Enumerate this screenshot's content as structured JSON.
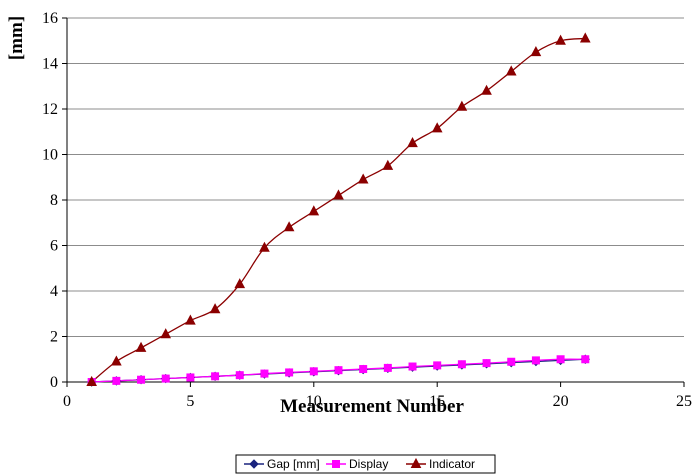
{
  "chart_data": {
    "type": "line",
    "title": "",
    "xlabel": "Measurement Number",
    "ylabel": "[mm]",
    "xlim": [
      0,
      25
    ],
    "ylim": [
      0,
      16
    ],
    "x_ticks": [
      0,
      5,
      10,
      15,
      20,
      25
    ],
    "y_ticks": [
      0,
      2,
      4,
      6,
      8,
      10,
      12,
      14,
      16
    ],
    "grid": "horizontal",
    "legend_position": "bottom",
    "series": [
      {
        "name": "Gap [mm]",
        "color": "#1a237e",
        "marker": "diamond",
        "x": [
          1,
          2,
          3,
          4,
          5,
          6,
          7,
          8,
          9,
          10,
          11,
          12,
          13,
          14,
          15,
          16,
          17,
          18,
          19,
          20,
          21
        ],
        "y": [
          0,
          0.05,
          0.1,
          0.15,
          0.2,
          0.25,
          0.3,
          0.35,
          0.4,
          0.45,
          0.5,
          0.55,
          0.6,
          0.65,
          0.7,
          0.75,
          0.8,
          0.85,
          0.9,
          0.95,
          1.0
        ]
      },
      {
        "name": "Display",
        "color": "#ff00ff",
        "marker": "square",
        "x": [
          1,
          2,
          3,
          4,
          5,
          6,
          7,
          8,
          9,
          10,
          11,
          12,
          13,
          14,
          15,
          16,
          17,
          18,
          19,
          20,
          21
        ],
        "y": [
          0,
          0.05,
          0.1,
          0.15,
          0.2,
          0.25,
          0.3,
          0.37,
          0.42,
          0.47,
          0.52,
          0.57,
          0.62,
          0.68,
          0.73,
          0.78,
          0.83,
          0.89,
          0.95,
          1.0,
          1.0
        ]
      },
      {
        "name": "Indicator",
        "color": "#8b0000",
        "marker": "triangle",
        "x": [
          1,
          2,
          3,
          4,
          5,
          6,
          7,
          8,
          9,
          10,
          11,
          12,
          13,
          14,
          15,
          16,
          17,
          18,
          19,
          20,
          21
        ],
        "y": [
          0,
          0.9,
          1.5,
          2.1,
          2.7,
          3.2,
          4.3,
          5.9,
          6.8,
          7.5,
          8.2,
          8.9,
          9.5,
          10.5,
          11.15,
          12.1,
          12.8,
          13.65,
          14.5,
          15.0,
          15.1
        ]
      }
    ]
  }
}
